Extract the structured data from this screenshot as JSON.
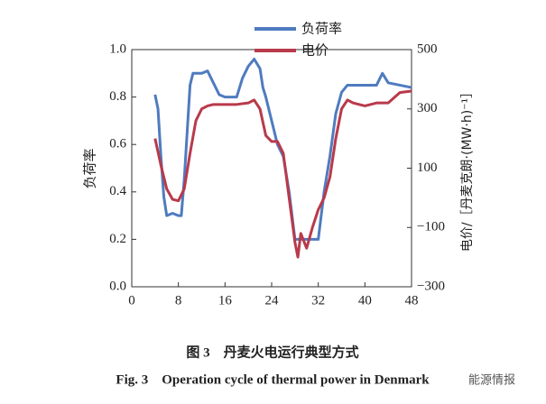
{
  "chart_data": {
    "type": "line",
    "title": "图 3　丹麦火电运行典型方式",
    "subtitle": "Fig. 3　Operation cycle of thermal power in Denmark",
    "y_label": "负荷率",
    "y2_label": "电价/［丹麦克朗·(MW·h)⁻¹］",
    "annotations": [
      "能源情报"
    ],
    "xlim": [
      0,
      48
    ],
    "xticks": [
      0,
      8,
      16,
      24,
      32,
      40,
      48
    ],
    "ylim": [
      0,
      1
    ],
    "yticks": [
      {
        "value": 0,
        "label": "0.0"
      },
      0.2,
      0.4,
      0.6,
      0.8,
      {
        "value": 1,
        "label": "1.0"
      }
    ],
    "y2lim": [
      -300,
      500
    ],
    "y2ticks": [
      {
        "value": -300,
        "label": "−300"
      },
      {
        "value": -100,
        "label": "−100"
      },
      100,
      300,
      500
    ],
    "legend": "top",
    "series": [
      {
        "name": "负荷率",
        "color": "#4f7bbf",
        "axis": "y",
        "x": [
          4,
          4.5,
          5,
          5.5,
          6,
          7,
          8,
          8.5,
          9,
          9.5,
          10,
          10.5,
          11,
          12,
          13,
          14,
          15,
          16,
          17,
          18,
          19,
          20,
          21,
          22,
          22.5,
          23,
          24,
          25,
          26,
          27,
          28,
          29,
          30,
          31,
          32,
          33,
          34,
          35,
          36,
          37,
          38,
          40,
          42,
          43,
          44,
          46,
          48
        ],
        "values": [
          0.81,
          0.75,
          0.55,
          0.38,
          0.3,
          0.31,
          0.3,
          0.3,
          0.45,
          0.65,
          0.85,
          0.9,
          0.9,
          0.9,
          0.91,
          0.86,
          0.81,
          0.8,
          0.8,
          0.8,
          0.88,
          0.93,
          0.96,
          0.92,
          0.84,
          0.8,
          0.7,
          0.6,
          0.55,
          0.4,
          0.2,
          0.2,
          0.2,
          0.2,
          0.2,
          0.4,
          0.55,
          0.73,
          0.82,
          0.85,
          0.85,
          0.85,
          0.85,
          0.9,
          0.86,
          0.85,
          0.84
        ]
      },
      {
        "name": "电价",
        "color": "#b83a4b",
        "axis": "y2",
        "x": [
          4,
          5,
          6,
          7,
          8,
          9,
          10,
          11,
          12,
          13,
          14,
          16,
          18,
          20,
          21,
          22,
          23,
          24,
          25,
          26,
          27,
          28,
          28.5,
          29,
          30,
          31,
          32,
          33,
          34,
          35,
          36,
          37,
          38,
          40,
          42,
          44,
          46,
          48
        ],
        "values": [
          200,
          110,
          30,
          -5,
          -10,
          30,
          150,
          260,
          300,
          310,
          315,
          315,
          315,
          320,
          330,
          300,
          210,
          190,
          190,
          150,
          0,
          -150,
          -200,
          -120,
          -170,
          -100,
          -40,
          0,
          70,
          200,
          300,
          330,
          320,
          310,
          320,
          320,
          355,
          360
        ]
      }
    ]
  }
}
